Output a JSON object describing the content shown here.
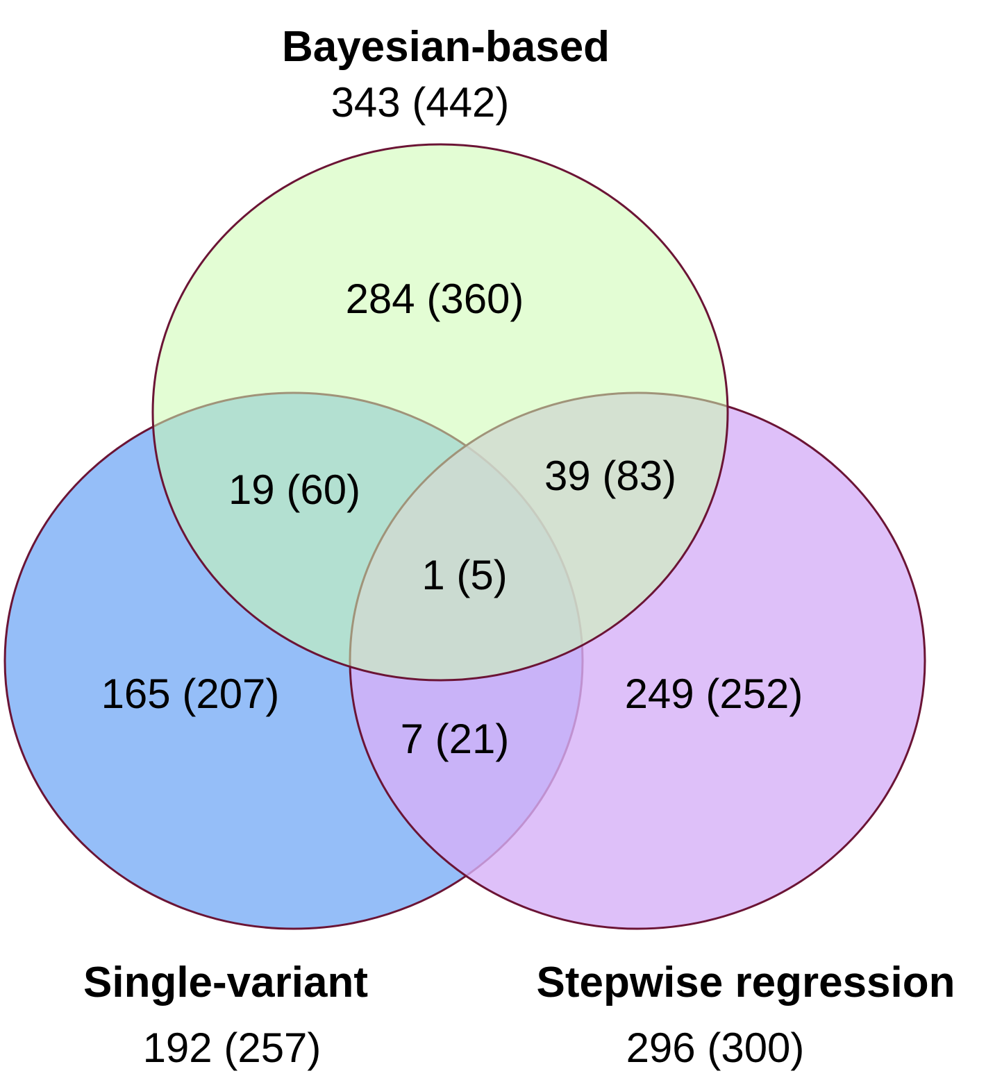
{
  "sets": {
    "bayesian": {
      "title": "Bayesian-based",
      "total": "343 (442)",
      "fill": "#ccfbb0",
      "stroke": "#6b1435"
    },
    "single": {
      "title": "Single-variant",
      "total": "192 (257)",
      "fill": "#7aaef6",
      "stroke": "#6b1435"
    },
    "stepwise": {
      "title": "Stepwise regression",
      "total": "296 (300)",
      "fill": "#d6b0f8",
      "stroke": "#6b1435"
    }
  },
  "regions": {
    "bayesian_only": "284 (360)",
    "single_only": "165 (207)",
    "stepwise_only": "249 (252)",
    "bayesian_single": "19 (60)",
    "bayesian_stepwise": "39 (83)",
    "single_stepwise": "7 (21)",
    "all_three": "1 (5)"
  }
}
